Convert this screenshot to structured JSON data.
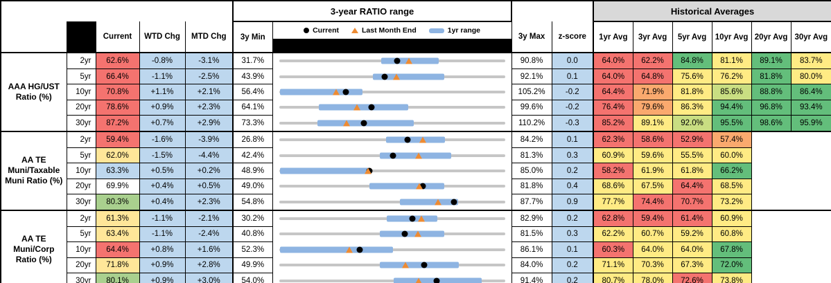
{
  "header": {
    "chart_section_title": "3-year RATIO range",
    "hist_section_title": "Historical Averages",
    "columns": {
      "current": "Current",
      "wtd": "WTD Chg",
      "mtd": "MTD Chg",
      "min": "3y Min",
      "max": "3y Max",
      "zscore": "z-score",
      "avgs": [
        "1yr Avg",
        "3yr Avg",
        "5yr Avg",
        "10yr Avg",
        "20yr Avg",
        "30yr Avg"
      ]
    },
    "legend": {
      "current": "Current",
      "last_month_end": "Last Month End",
      "range_1yr": "1yr range"
    }
  },
  "palette": {
    "red": "#F4736F",
    "orange": "#FAA96E",
    "yellow": "#FFEB84",
    "yellowgreen": "#C9DE82",
    "green": "#63BE7B",
    "currentyellow": "#FFE699",
    "currentgreen": "#A9D08E",
    "blue": "#BDD7EE",
    "white": "#FFFFFF",
    "track": "#C6C6C6",
    "bar": "#8EB4E2",
    "dot": "#000000",
    "triangle": "#ED8B33",
    "header_gray": "#D9D9D9",
    "header_black": "#000000"
  },
  "chart_data": {
    "type": "table",
    "groups": [
      {
        "label": "AAA HG/UST Ratio (%)",
        "rows": [
          {
            "tenor": "2yr",
            "current": 62.6,
            "wtd": -0.8,
            "mtd": -3.1,
            "min3y": 31.7,
            "max3y": 90.8,
            "zscore": 0.0,
            "range1yr": [
              58.5,
              73.5
            ],
            "avgs": [
              64.0,
              62.2,
              84.8,
              81.1,
              89.1,
              83.7
            ],
            "colors": {
              "current": "red",
              "avgs": [
                "red",
                "red",
                "green",
                "yellow",
                "green",
                "yellow"
              ]
            }
          },
          {
            "tenor": "5yr",
            "current": 66.4,
            "wtd": -1.1,
            "mtd": -2.5,
            "min3y": 43.9,
            "max3y": 92.1,
            "zscore": 0.1,
            "range1yr": [
              63.9,
              79.2
            ],
            "avgs": [
              64.0,
              64.8,
              75.6,
              76.2,
              81.8,
              80.0
            ],
            "colors": {
              "current": "red",
              "avgs": [
                "red",
                "red",
                "yellow",
                "yellow",
                "green",
                "yellow"
              ]
            }
          },
          {
            "tenor": "10yr",
            "current": 70.8,
            "wtd": 1.1,
            "mtd": 2.1,
            "min3y": 56.4,
            "max3y": 105.2,
            "zscore": -0.2,
            "range1yr": [
              56.6,
              74.5
            ],
            "avgs": [
              64.4,
              71.9,
              81.8,
              85.6,
              88.8,
              86.4
            ],
            "colors": {
              "current": "red",
              "avgs": [
                "red",
                "orange",
                "yellow",
                "yellowgreen",
                "green",
                "green"
              ]
            }
          },
          {
            "tenor": "20yr",
            "current": 78.6,
            "wtd": 0.9,
            "mtd": 2.3,
            "min3y": 64.1,
            "max3y": 99.6,
            "zscore": -0.2,
            "range1yr": [
              70.4,
              84.4
            ],
            "avgs": [
              76.4,
              79.6,
              86.3,
              94.4,
              96.8,
              93.4
            ],
            "colors": {
              "current": "red",
              "avgs": [
                "red",
                "orange",
                "yellow",
                "green",
                "green",
                "green"
              ]
            }
          },
          {
            "tenor": "30yr",
            "current": 87.2,
            "wtd": 0.7,
            "mtd": 2.9,
            "min3y": 73.3,
            "max3y": 110.2,
            "zscore": -0.3,
            "range1yr": [
              79.6,
              95.3
            ],
            "avgs": [
              85.2,
              89.1,
              92.0,
              95.5,
              98.6,
              95.9
            ],
            "colors": {
              "current": "red",
              "avgs": [
                "red",
                "yellow",
                "yellowgreen",
                "green",
                "green",
                "green"
              ]
            }
          }
        ]
      },
      {
        "label": "AA TE Muni/Taxable Muni Ratio (%)",
        "rows": [
          {
            "tenor": "2yr",
            "current": 59.4,
            "wtd": -1.6,
            "mtd": -3.9,
            "min3y": 26.8,
            "max3y": 84.2,
            "zscore": 0.1,
            "range1yr": [
              54.0,
              69.0
            ],
            "avgs": [
              62.3,
              58.6,
              52.9,
              57.4,
              null,
              null
            ],
            "colors": {
              "current": "red",
              "avgs": [
                "red",
                "red",
                "red",
                "orange",
                null,
                null
              ]
            }
          },
          {
            "tenor": "5yr",
            "current": 62.0,
            "wtd": -1.5,
            "mtd": -4.4,
            "min3y": 42.4,
            "max3y": 81.3,
            "zscore": 0.3,
            "range1yr": [
              59.7,
              72.1
            ],
            "avgs": [
              60.9,
              59.6,
              55.5,
              60.0,
              null,
              null
            ],
            "colors": {
              "current": "currentyellow",
              "avgs": [
                "yellow",
                "yellow",
                "yellow",
                "yellow",
                null,
                null
              ]
            }
          },
          {
            "tenor": "10yr",
            "current": 63.3,
            "wtd": 0.5,
            "mtd": 0.2,
            "min3y": 48.9,
            "max3y": 85.0,
            "zscore": 0.2,
            "range1yr": [
              49.1,
              63.4
            ],
            "avgs": [
              58.2,
              61.9,
              61.8,
              66.2,
              null,
              null
            ],
            "colors": {
              "current": "blue",
              "avgs": [
                "red",
                "yellow",
                "yellow",
                "green",
                null,
                null
              ]
            }
          },
          {
            "tenor": "20yr",
            "current": 69.9,
            "wtd": 0.4,
            "mtd": 0.5,
            "min3y": 49.0,
            "max3y": 81.8,
            "zscore": 0.4,
            "range1yr": [
              62.1,
              73.0
            ],
            "avgs": [
              68.6,
              67.5,
              64.4,
              68.5,
              null,
              null
            ],
            "colors": {
              "current": "white",
              "avgs": [
                "yellow",
                "yellow",
                "red",
                "yellow",
                null,
                null
              ]
            }
          },
          {
            "tenor": "30yr",
            "current": 80.3,
            "wtd": 0.4,
            "mtd": 2.3,
            "min3y": 54.8,
            "max3y": 87.7,
            "zscore": 0.9,
            "range1yr": [
              72.4,
              80.9
            ],
            "avgs": [
              77.7,
              74.4,
              70.7,
              73.2,
              null,
              null
            ],
            "colors": {
              "current": "currentgreen",
              "avgs": [
                "yellow",
                "red",
                "red",
                "yellow",
                null,
                null
              ]
            }
          }
        ]
      },
      {
        "label": "AA TE Muni/Corp Ratio (%)",
        "rows": [
          {
            "tenor": "2yr",
            "current": 61.3,
            "wtd": -1.1,
            "mtd": -2.1,
            "min3y": 30.2,
            "max3y": 82.9,
            "zscore": 0.2,
            "range1yr": [
              55.3,
              67.1
            ],
            "avgs": [
              62.8,
              59.4,
              61.4,
              60.9,
              null,
              null
            ],
            "colors": {
              "current": "currentyellow",
              "avgs": [
                "red",
                "red",
                "red",
                "yellow",
                null,
                null
              ]
            }
          },
          {
            "tenor": "5yr",
            "current": 63.4,
            "wtd": -1.1,
            "mtd": -2.4,
            "min3y": 40.8,
            "max3y": 81.5,
            "zscore": 0.3,
            "range1yr": [
              58.9,
              70.6
            ],
            "avgs": [
              62.2,
              60.7,
              59.2,
              60.8,
              null,
              null
            ],
            "colors": {
              "current": "currentyellow",
              "avgs": [
                "yellow",
                "yellow",
                "yellow",
                "yellow",
                null,
                null
              ]
            }
          },
          {
            "tenor": "10yr",
            "current": 64.4,
            "wtd": 0.8,
            "mtd": 1.6,
            "min3y": 52.3,
            "max3y": 86.1,
            "zscore": 0.1,
            "range1yr": [
              52.4,
              69.4
            ],
            "avgs": [
              60.3,
              64.0,
              64.0,
              67.8,
              null,
              null
            ],
            "colors": {
              "current": "red",
              "avgs": [
                "red",
                "yellow",
                "yellow",
                "green",
                null,
                null
              ]
            }
          },
          {
            "tenor": "20yr",
            "current": 71.8,
            "wtd": 0.9,
            "mtd": 2.8,
            "min3y": 49.9,
            "max3y": 84.0,
            "zscore": 0.2,
            "range1yr": [
              65.1,
              77.0
            ],
            "avgs": [
              71.1,
              70.3,
              67.3,
              72.0,
              null,
              null
            ],
            "colors": {
              "current": "currentyellow",
              "avgs": [
                "yellow",
                "yellow",
                "yellow",
                "green",
                null,
                null
              ]
            }
          },
          {
            "tenor": "30yr",
            "current": 80.1,
            "wtd": 0.9,
            "mtd": 3.0,
            "min3y": 54.0,
            "max3y": 91.4,
            "zscore": 0.2,
            "range1yr": [
              73.0,
              87.5
            ],
            "avgs": [
              80.7,
              78.0,
              72.6,
              73.8,
              null,
              null
            ],
            "colors": {
              "current": "currentgreen",
              "avgs": [
                "yellow",
                "yellow",
                "red",
                "yellow",
                null,
                null
              ]
            }
          }
        ]
      }
    ]
  }
}
